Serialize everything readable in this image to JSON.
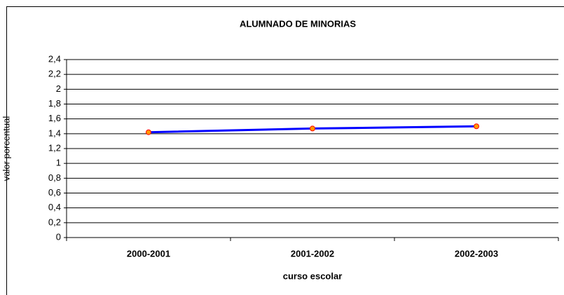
{
  "chart_data": {
    "type": "line",
    "title": "ALUMNADO DE MINORIAS",
    "x_label": "curso escolar",
    "y_label": "valor porcentual",
    "categories": [
      "2000-2001",
      "2001-2002",
      "2002-2003"
    ],
    "series": [
      {
        "name": "ALUMNADO DE MINORIAS",
        "color": "#0000ff",
        "marker_color": "#ff9900",
        "values": [
          1.42,
          1.47,
          1.5
        ]
      }
    ],
    "ylim": [
      0,
      2.4
    ],
    "yticks": [
      0,
      {
        "value": 0.2,
        "label": "0,2"
      },
      {
        "value": 0.4,
        "label": "0,4"
      },
      {
        "value": 0.6,
        "label": "0,6"
      },
      {
        "value": 0.8,
        "label": "0,8"
      },
      1,
      {
        "value": 1.2,
        "label": "1,2"
      },
      {
        "value": 1.4,
        "label": "1,4"
      },
      {
        "value": 1.6,
        "label": "1,6"
      },
      {
        "value": 1.8,
        "label": "1,8"
      },
      2,
      {
        "value": 2.2,
        "label": "2,2"
      },
      {
        "value": 2.4,
        "label": "2,4"
      }
    ],
    "grid": true
  }
}
